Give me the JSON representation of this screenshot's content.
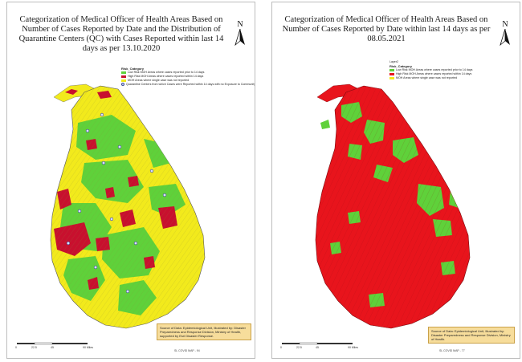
{
  "left_map": {
    "title": "Categorization of Medical Officer of Health Areas Based on Number of Cases Reported by Date and the Distribution of Quarantine Centers (QC) with Cases Reported within last 14 days as per 13.10.2020",
    "north_label": "N",
    "legend": {
      "title": "Risk_Category",
      "items": [
        {
          "label": "Low Risk MOH Areas where cases reported prior to 14 days",
          "color": "#5fd13a"
        },
        {
          "label": "High Risk MOH Areas where cases reported within 14 days",
          "color": "#c8102e"
        },
        {
          "label": "MOH Areas where single case was not reported",
          "color": "#f2ea1c"
        }
      ],
      "qc_item": "Quarantine Centers from which Cases were Reported within 14 days with no Exposure to Community"
    },
    "source": "Source of Data: Epidemiological Unit, Illustrated by: Disaster Preparedness and Response Division, Ministry of Health, supported by Esri Disaster Response.",
    "footer_code": "SL COVID MAP - 94",
    "scale_labels": [
      "0",
      "22.5",
      "45",
      "90 Miles"
    ]
  },
  "right_map": {
    "title": "Categorization of Medical Officer of Health Areas Based on Number of Cases Reported by Date within last 14 days as per 08.05.2021",
    "north_label": "N",
    "legend": {
      "layer_label": "Layer2",
      "title": "Risk_Category",
      "items": [
        {
          "label": "Low Risk MOH Areas where cases reported prior to 14 days",
          "color": "#5fd13a"
        },
        {
          "label": "High Risk MOH Areas where cases reported within 14 days",
          "color": "#e8141c"
        },
        {
          "label": "MOH Areas where single case was not reported",
          "color": "#f2ea1c"
        }
      ]
    },
    "source": "Source of Data: Epidemiological Unit, Illustrated by: Disaster Preparedness and Response Division, Ministry of Health.",
    "footer_code": "SL COVID MAP - 77",
    "scale_labels": [
      "0",
      "22.5",
      "45",
      "90 Miles"
    ]
  }
}
